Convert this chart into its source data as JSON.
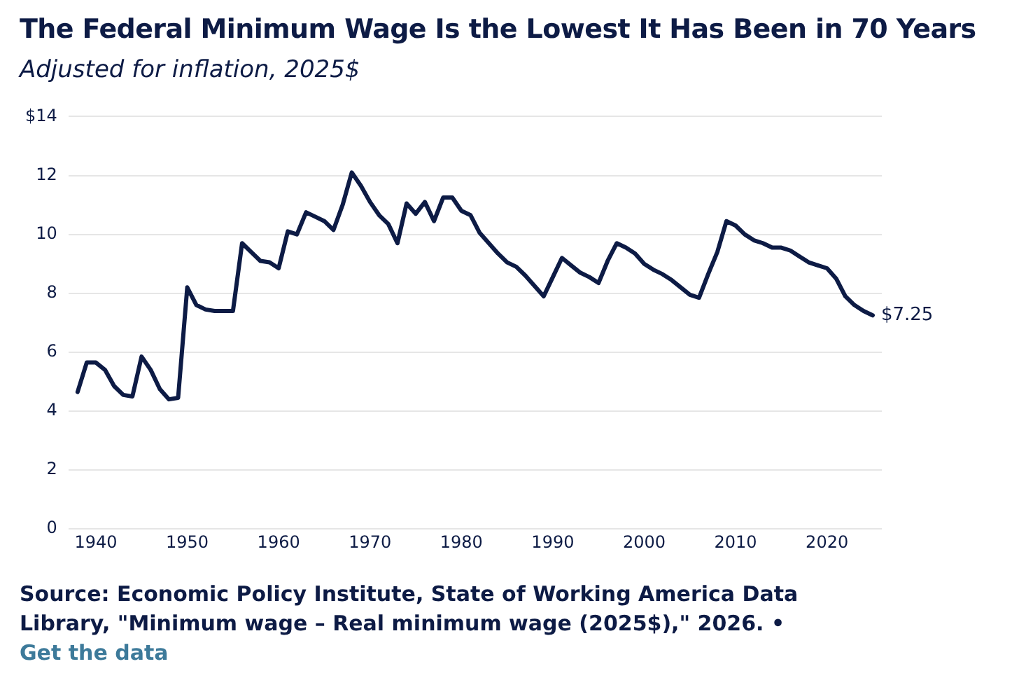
{
  "chart_data": {
    "type": "line",
    "title": "The Federal Minimum Wage Is the Lowest It Has Been in 70 Years",
    "subtitle": "Adjusted for inflation, 2025$",
    "x": [
      1938,
      1939,
      1940,
      1941,
      1942,
      1943,
      1944,
      1945,
      1946,
      1947,
      1948,
      1949,
      1950,
      1951,
      1952,
      1953,
      1954,
      1955,
      1956,
      1957,
      1958,
      1959,
      1960,
      1961,
      1962,
      1963,
      1964,
      1965,
      1966,
      1967,
      1968,
      1969,
      1970,
      1971,
      1972,
      1973,
      1974,
      1975,
      1976,
      1977,
      1978,
      1979,
      1980,
      1981,
      1982,
      1983,
      1984,
      1985,
      1986,
      1987,
      1988,
      1989,
      1990,
      1991,
      1992,
      1993,
      1994,
      1995,
      1996,
      1997,
      1998,
      1999,
      2000,
      2001,
      2002,
      2003,
      2004,
      2005,
      2006,
      2007,
      2008,
      2009,
      2010,
      2011,
      2012,
      2013,
      2014,
      2015,
      2016,
      2017,
      2018,
      2019,
      2020,
      2021,
      2022,
      2023,
      2024,
      2025
    ],
    "series": [
      {
        "color": "#0d1b45",
        "values": [
          4.65,
          5.65,
          5.65,
          5.4,
          4.85,
          4.55,
          4.5,
          5.85,
          5.4,
          4.75,
          4.4,
          4.45,
          8.2,
          7.6,
          7.45,
          7.4,
          7.4,
          7.4,
          9.7,
          9.4,
          9.1,
          9.05,
          8.85,
          10.1,
          10.0,
          10.75,
          10.6,
          10.45,
          10.15,
          11.0,
          12.1,
          11.65,
          11.1,
          10.65,
          10.35,
          9.7,
          11.05,
          10.7,
          11.1,
          10.45,
          11.25,
          11.25,
          10.8,
          10.65,
          10.05,
          9.7,
          9.35,
          9.05,
          8.9,
          8.6,
          8.25,
          7.9,
          8.55,
          9.2,
          8.95,
          8.7,
          8.55,
          8.35,
          9.1,
          9.7,
          9.55,
          9.35,
          9.0,
          8.8,
          8.65,
          8.45,
          8.2,
          7.95,
          7.85,
          8.65,
          9.4,
          10.45,
          10.3,
          10.0,
          9.8,
          9.7,
          9.55,
          9.55,
          9.45,
          9.25,
          9.05,
          8.95,
          8.85,
          8.5,
          7.9,
          7.6,
          7.4,
          7.25
        ]
      }
    ],
    "xlim": [
      1937,
      2026
    ],
    "xticks": [
      1940,
      1950,
      1960,
      1970,
      1980,
      1990,
      2000,
      2010,
      2020
    ],
    "ylim": [
      0,
      14
    ],
    "yticks": [
      0,
      2,
      4,
      6,
      8,
      10,
      12,
      {
        "value": 14,
        "label": "$14"
      }
    ],
    "grid": "y",
    "legend": false,
    "marker": "none",
    "line_style": "solid",
    "annotations": [
      {
        "text": "$7.25",
        "x": 2025,
        "y": 7.25
      },
      "Source: Economic Policy Institute, State of Working America Data Library, \"Minimum wage – Real minimum wage (2025$),\" 2026. •",
      "Get the data"
    ]
  }
}
